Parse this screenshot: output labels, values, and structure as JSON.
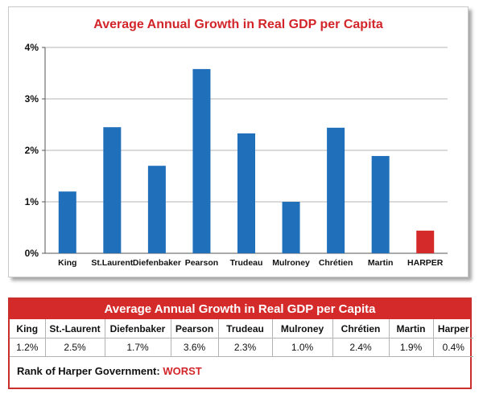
{
  "chart_data": {
    "type": "bar",
    "title": "Average Annual Growth in Real GDP per Capita",
    "categories": [
      "King",
      "St.Laurent",
      "Diefenbaker",
      "Pearson",
      "Trudeau",
      "Mulroney",
      "Chrétien",
      "Martin",
      "HARPER"
    ],
    "values": [
      1.2,
      2.45,
      1.7,
      3.58,
      2.33,
      1.0,
      2.44,
      1.89,
      0.44
    ],
    "ylim": [
      0,
      4
    ],
    "yticks": [
      0,
      1,
      2,
      3,
      4
    ],
    "ytick_labels": [
      "0%",
      "1%",
      "2%",
      "3%",
      "4%"
    ],
    "xlabel": "",
    "ylabel": "",
    "grid": true,
    "colors": {
      "default": "#1f6fba",
      "highlight": "#d42a2a",
      "highlight_category": "HARPER"
    }
  },
  "table": {
    "title": "Average Annual Growth in Real GDP per Capita",
    "headers": [
      "King",
      "St.-Laurent",
      "Diefenbaker",
      "Pearson",
      "Trudeau",
      "Mulroney",
      "Chrétien",
      "Martin",
      "Harper"
    ],
    "values": [
      "1.2%",
      "2.5%",
      "1.7%",
      "3.6%",
      "2.3%",
      "1.0%",
      "2.4%",
      "1.9%",
      "0.4%"
    ],
    "rank_label": "Rank of Harper Government:",
    "rank_value": "WORST"
  }
}
